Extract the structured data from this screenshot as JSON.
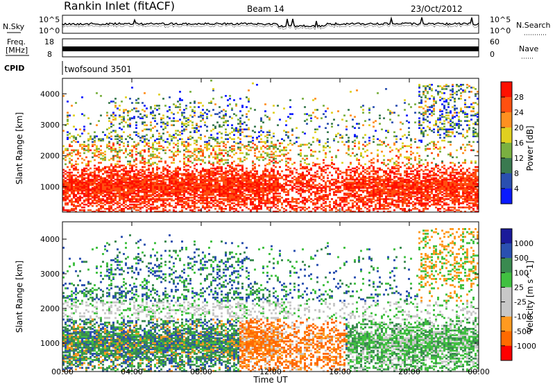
{
  "header": {
    "station": "Rankin Inlet (fitACF)",
    "beam": "Beam 14",
    "date": "23/Oct/2012"
  },
  "noise_panel": {
    "left_label": "N.Sky",
    "right_label": "N.Search",
    "left_ticks": [
      "10^5",
      "10^0"
    ],
    "right_ticks": [
      "10^5",
      "10^0"
    ]
  },
  "freq_panel": {
    "left_label_line1": "Freq.",
    "left_label_line2": "[MHz]",
    "right_label": "Nave",
    "left_ticks": [
      "18",
      "8"
    ],
    "right_ticks": [
      "60",
      "0"
    ]
  },
  "cpid_panel": {
    "label": "CPID",
    "value": "twofsound 3501"
  },
  "x_axis": {
    "label": "Time UT",
    "ticks": [
      "00:00",
      "04:00",
      "08:00",
      "12:00",
      "16:00",
      "20:00",
      "00:00"
    ]
  },
  "colors": {
    "power_scale": [
      "#0a1aff",
      "#2a4fb0",
      "#3a7a50",
      "#7ab040",
      "#e0d020",
      "#ff9020",
      "#ff5010",
      "#ff1000"
    ],
    "velocity_scale": [
      "#ff0000",
      "#ff6a00",
      "#ff9a20",
      "#c8c8c8",
      "#c8c8c8",
      "#40c040",
      "#3a8a50",
      "#2a50b0",
      "#1a1a9a"
    ]
  },
  "chart_data": [
    {
      "type": "heatmap",
      "title": "Power",
      "ylabel": "Slant Range [km]",
      "ylim": [
        180,
        4500
      ],
      "yticks": [
        "1000",
        "2000",
        "3000",
        "4000"
      ],
      "xlim": [
        "00:00",
        "24:00"
      ],
      "colorbar": {
        "label": "Power [dB]",
        "ticks": [
          "4",
          "8",
          "12",
          "16",
          "20",
          "24",
          "28"
        ]
      }
    },
    {
      "type": "heatmap",
      "title": "Velocity",
      "ylabel": "Slant Range [km]",
      "ylim": [
        180,
        4500
      ],
      "yticks": [
        "1000",
        "2000",
        "3000",
        "4000"
      ],
      "xlim": [
        "00:00",
        "24:00"
      ],
      "colorbar": {
        "label": "Velocity [m s^-1]",
        "ticks": [
          "1000",
          "500",
          "100",
          "25",
          "-25",
          "-100",
          "-500",
          "-1000"
        ]
      }
    }
  ]
}
